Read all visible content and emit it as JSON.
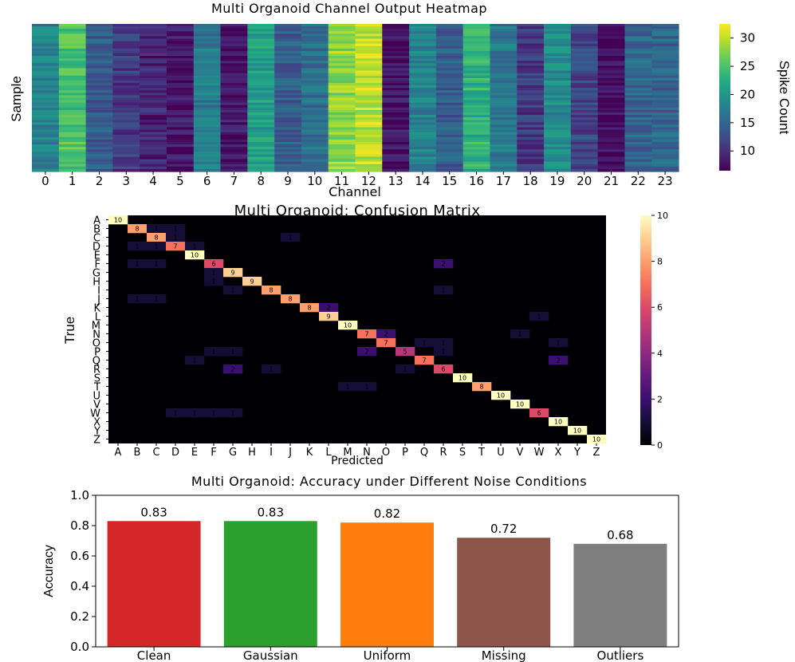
{
  "chart_data": [
    {
      "type": "heatmap",
      "title": "Multi Organoid Channel Output Heatmap",
      "xlabel": "Channel",
      "ylabel": "Sample",
      "x_tick_labels": [
        "0",
        "1",
        "2",
        "3",
        "4",
        "5",
        "6",
        "7",
        "8",
        "9",
        "10",
        "11",
        "12",
        "13",
        "14",
        "15",
        "16",
        "17",
        "18",
        "19",
        "20",
        "21",
        "22",
        "23"
      ],
      "n_samples": 60,
      "channel_mean_spike_count": [
        18,
        25,
        14,
        11,
        9,
        8,
        17,
        8,
        21,
        14,
        16,
        28,
        30,
        8,
        18,
        14,
        23,
        17,
        11,
        19,
        12,
        7,
        15,
        15
      ],
      "colormap": "viridis",
      "colorbar": {
        "label": "Spike Count",
        "ticks": [
          "10",
          "15",
          "20",
          "25",
          "30"
        ],
        "range": [
          6.5,
          32.5
        ]
      }
    },
    {
      "type": "heatmap",
      "title": "Multi Organoid: Confusion Matrix",
      "xlabel": "Predicted",
      "ylabel": "True",
      "labels": [
        "A",
        "B",
        "C",
        "D",
        "E",
        "F",
        "G",
        "H",
        "I",
        "J",
        "K",
        "L",
        "M",
        "N",
        "O",
        "P",
        "Q",
        "R",
        "S",
        "T",
        "U",
        "V",
        "W",
        "X",
        "Y",
        "Z"
      ],
      "matrix": [
        [
          10,
          0,
          0,
          0,
          0,
          0,
          0,
          0,
          0,
          0,
          0,
          0,
          0,
          0,
          0,
          0,
          0,
          0,
          0,
          0,
          0,
          0,
          0,
          0,
          0,
          0
        ],
        [
          0,
          8,
          1,
          1,
          0,
          0,
          0,
          0,
          0,
          0,
          0,
          0,
          0,
          0,
          0,
          0,
          0,
          0,
          0,
          0,
          0,
          0,
          0,
          0,
          0,
          0
        ],
        [
          0,
          0,
          8,
          1,
          0,
          0,
          0,
          0,
          0,
          1,
          0,
          0,
          0,
          0,
          0,
          0,
          0,
          0,
          0,
          0,
          0,
          0,
          0,
          0,
          0,
          0
        ],
        [
          0,
          1,
          1,
          7,
          1,
          0,
          0,
          0,
          0,
          0,
          0,
          0,
          0,
          0,
          0,
          0,
          0,
          0,
          0,
          0,
          0,
          0,
          0,
          0,
          0,
          0
        ],
        [
          0,
          0,
          0,
          0,
          10,
          0,
          0,
          0,
          0,
          0,
          0,
          0,
          0,
          0,
          0,
          0,
          0,
          0,
          0,
          0,
          0,
          0,
          0,
          0,
          0,
          0
        ],
        [
          0,
          1,
          1,
          0,
          0,
          6,
          0,
          0,
          0,
          0,
          0,
          0,
          0,
          0,
          0,
          0,
          0,
          2,
          0,
          0,
          0,
          0,
          0,
          0,
          0,
          0
        ],
        [
          0,
          0,
          0,
          0,
          0,
          1,
          9,
          0,
          0,
          0,
          0,
          0,
          0,
          0,
          0,
          0,
          0,
          0,
          0,
          0,
          0,
          0,
          0,
          0,
          0,
          0
        ],
        [
          0,
          0,
          0,
          0,
          0,
          1,
          0,
          9,
          0,
          0,
          0,
          0,
          0,
          0,
          0,
          0,
          0,
          0,
          0,
          0,
          0,
          0,
          0,
          0,
          0,
          0
        ],
        [
          0,
          0,
          0,
          0,
          0,
          0,
          1,
          0,
          8,
          0,
          0,
          0,
          0,
          0,
          0,
          0,
          0,
          1,
          0,
          0,
          0,
          0,
          0,
          0,
          0,
          0
        ],
        [
          0,
          1,
          1,
          0,
          0,
          0,
          0,
          0,
          0,
          8,
          0,
          0,
          0,
          0,
          0,
          0,
          0,
          0,
          0,
          0,
          0,
          0,
          0,
          0,
          0,
          0
        ],
        [
          0,
          0,
          0,
          0,
          0,
          0,
          0,
          0,
          0,
          0,
          8,
          2,
          0,
          0,
          0,
          0,
          0,
          0,
          0,
          0,
          0,
          0,
          0,
          0,
          0,
          0
        ],
        [
          0,
          0,
          0,
          0,
          0,
          0,
          0,
          0,
          0,
          0,
          0,
          9,
          0,
          0,
          0,
          0,
          0,
          0,
          0,
          0,
          0,
          0,
          1,
          0,
          0,
          0
        ],
        [
          0,
          0,
          0,
          0,
          0,
          0,
          0,
          0,
          0,
          0,
          0,
          0,
          10,
          0,
          0,
          0,
          0,
          0,
          0,
          0,
          0,
          0,
          0,
          0,
          0,
          0
        ],
        [
          0,
          0,
          0,
          0,
          0,
          0,
          0,
          0,
          0,
          0,
          0,
          0,
          0,
          7,
          2,
          0,
          0,
          0,
          0,
          0,
          0,
          1,
          0,
          0,
          0,
          0
        ],
        [
          0,
          0,
          0,
          0,
          0,
          0,
          0,
          0,
          0,
          0,
          0,
          0,
          0,
          0,
          7,
          0,
          1,
          1,
          0,
          0,
          0,
          0,
          0,
          1,
          0,
          0
        ],
        [
          0,
          0,
          0,
          0,
          0,
          1,
          1,
          0,
          0,
          0,
          0,
          0,
          0,
          2,
          0,
          5,
          0,
          1,
          0,
          0,
          0,
          0,
          0,
          0,
          0,
          0
        ],
        [
          0,
          0,
          0,
          0,
          1,
          0,
          0,
          0,
          0,
          0,
          0,
          0,
          0,
          0,
          0,
          0,
          7,
          0,
          0,
          0,
          0,
          0,
          0,
          2,
          0,
          0
        ],
        [
          0,
          0,
          0,
          0,
          0,
          0,
          2,
          0,
          1,
          0,
          0,
          0,
          0,
          0,
          0,
          1,
          0,
          6,
          0,
          0,
          0,
          0,
          0,
          0,
          0,
          0
        ],
        [
          0,
          0,
          0,
          0,
          0,
          0,
          0,
          0,
          0,
          0,
          0,
          0,
          0,
          0,
          0,
          0,
          0,
          0,
          10,
          0,
          0,
          0,
          0,
          0,
          0,
          0
        ],
        [
          0,
          0,
          0,
          0,
          0,
          0,
          0,
          0,
          0,
          0,
          0,
          0,
          1,
          1,
          0,
          0,
          0,
          0,
          0,
          8,
          0,
          0,
          0,
          0,
          0,
          0
        ],
        [
          0,
          0,
          0,
          0,
          0,
          0,
          0,
          0,
          0,
          0,
          0,
          0,
          0,
          0,
          0,
          0,
          0,
          0,
          0,
          0,
          10,
          0,
          0,
          0,
          0,
          0
        ],
        [
          0,
          0,
          0,
          0,
          0,
          0,
          0,
          0,
          0,
          0,
          0,
          0,
          0,
          0,
          0,
          0,
          0,
          0,
          0,
          0,
          0,
          10,
          0,
          0,
          0,
          0
        ],
        [
          0,
          0,
          0,
          1,
          1,
          1,
          1,
          0,
          0,
          0,
          0,
          0,
          0,
          0,
          0,
          0,
          0,
          0,
          0,
          0,
          0,
          0,
          6,
          0,
          0,
          0
        ],
        [
          0,
          0,
          0,
          0,
          0,
          0,
          0,
          0,
          0,
          0,
          0,
          0,
          0,
          0,
          0,
          0,
          0,
          0,
          0,
          0,
          0,
          0,
          0,
          10,
          0,
          0
        ],
        [
          0,
          0,
          0,
          0,
          0,
          0,
          0,
          0,
          0,
          0,
          0,
          0,
          0,
          0,
          0,
          0,
          0,
          0,
          0,
          0,
          0,
          0,
          0,
          0,
          10,
          0
        ],
        [
          0,
          0,
          0,
          0,
          0,
          0,
          0,
          0,
          0,
          0,
          0,
          0,
          0,
          0,
          0,
          0,
          0,
          0,
          0,
          0,
          0,
          0,
          0,
          0,
          0,
          10
        ]
      ],
      "colormap": "magma",
      "colorbar": {
        "ticks": [
          "0",
          "2",
          "4",
          "6",
          "8",
          "10"
        ],
        "range": [
          0,
          10
        ]
      }
    },
    {
      "type": "bar",
      "title": "Multi Organoid: Accuracy under Different Noise Conditions",
      "categories": [
        "Clean",
        "Gaussian",
        "Uniform",
        "Missing",
        "Outliers"
      ],
      "values": [
        0.83,
        0.83,
        0.82,
        0.72,
        0.68
      ],
      "value_labels": [
        "0.83",
        "0.83",
        "0.82",
        "0.72",
        "0.68"
      ],
      "colors": [
        "#d62728",
        "#2ca02c",
        "#ff7f0e",
        "#8c564b",
        "#7f7f7f"
      ],
      "highlight_color": "#ff0000",
      "highlight_category": "Clean",
      "xlabel": "",
      "ylabel": "Accuracy",
      "ylim": [
        0.0,
        1.0
      ],
      "y_tick_labels": [
        "0.0",
        "0.2",
        "0.4",
        "0.6",
        "0.8",
        "1.0"
      ]
    }
  ]
}
